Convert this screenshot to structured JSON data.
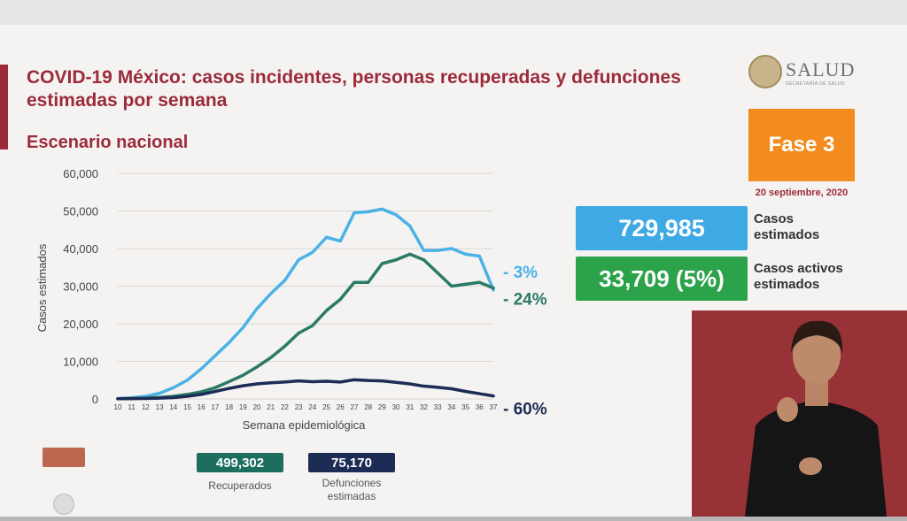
{
  "header": {
    "title": "COVID-19 México: casos incidentes, personas recuperadas y defunciones estimadas por semana",
    "subtitle": "Escenario nacional"
  },
  "logo": {
    "name": "SALUD",
    "tagline": "SECRETARÍA DE SALUD"
  },
  "phase": {
    "label": "Fase 3",
    "date": "20 septiembre, 2020"
  },
  "kpis": [
    {
      "value": "729,985",
      "label_line1": "Casos",
      "label_line2": "estimados",
      "color": "#3fa9e6"
    },
    {
      "value": "33,709 (5%)",
      "label_line1": "Casos activos",
      "label_line2": "estimados",
      "color": "#2ca24a"
    }
  ],
  "totals": [
    {
      "value": "499,302",
      "label_line1": "Recuperados",
      "label_line2": "",
      "color": "#1e6e60"
    },
    {
      "value": "75,170",
      "label_line1": "Defunciones",
      "label_line2": "estimadas",
      "color": "#1c2c55"
    }
  ],
  "chart_data": {
    "type": "line",
    "title": "",
    "xlabel": "Semana epidemiológica",
    "ylabel": "Casos estimados",
    "ylim": [
      0,
      60000
    ],
    "yticks": [
      "0",
      "10,000",
      "20,000",
      "30,000",
      "40,000",
      "50,000",
      "60,000"
    ],
    "yticks_values": [
      0,
      10000,
      20000,
      30000,
      40000,
      50000,
      60000
    ],
    "x": [
      10,
      11,
      12,
      13,
      14,
      15,
      16,
      17,
      18,
      19,
      20,
      21,
      22,
      23,
      24,
      25,
      26,
      27,
      28,
      29,
      30,
      31,
      32,
      33,
      34,
      35,
      36,
      37
    ],
    "xticks": [
      "10",
      "11",
      "12",
      "13",
      "14",
      "15",
      "16",
      "17",
      "18",
      "19",
      "20",
      "21",
      "22",
      "23",
      "24",
      "25",
      "26",
      "27",
      "28",
      "29",
      "30",
      "31",
      "32",
      "33",
      "34",
      "35",
      "36",
      "37"
    ],
    "series": [
      {
        "color": "#4ab2e6",
        "end_label": "- 3%",
        "values": [
          100,
          300,
          700,
          1500,
          3000,
          5000,
          8000,
          11500,
          15000,
          19000,
          24000,
          28000,
          31500,
          37000,
          39000,
          43000,
          42000,
          49500,
          49800,
          50500,
          49000,
          46000,
          39500,
          39500,
          40000,
          38500,
          38000,
          29000
        ]
      },
      {
        "color": "#2a7a68",
        "end_label": "- 24%",
        "values": [
          50,
          100,
          200,
          400,
          700,
          1200,
          1900,
          3000,
          4600,
          6300,
          8500,
          11000,
          14000,
          17500,
          19500,
          23500,
          26500,
          31000,
          31000,
          36000,
          37000,
          38500,
          37000,
          33500,
          30000,
          30500,
          31000,
          29500
        ]
      },
      {
        "color": "#1c2c55",
        "end_label": "- 60%",
        "values": [
          50,
          80,
          120,
          200,
          350,
          700,
          1200,
          2000,
          2800,
          3500,
          4000,
          4300,
          4500,
          4800,
          4600,
          4700,
          4500,
          5100,
          4900,
          4800,
          4400,
          4000,
          3400,
          3100,
          2700,
          2000,
          1400,
          800
        ]
      }
    ]
  }
}
